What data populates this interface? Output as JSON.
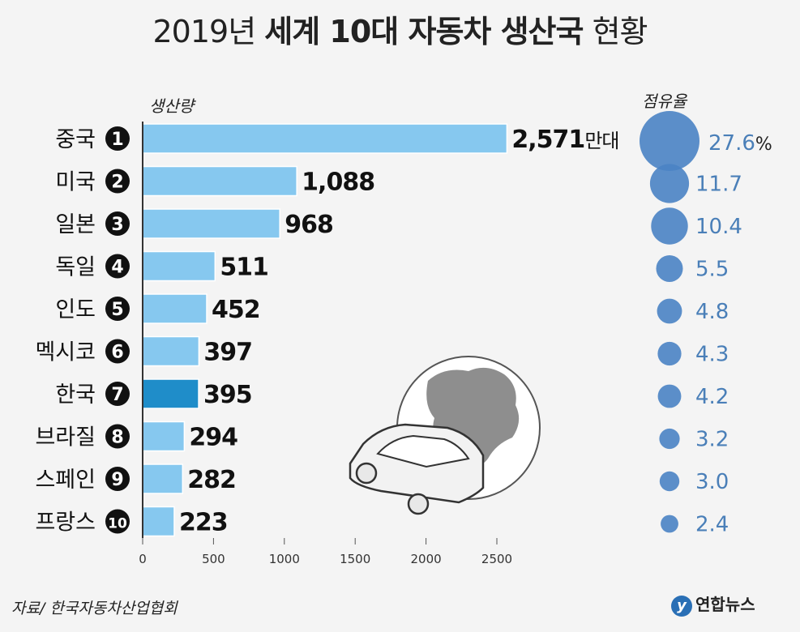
{
  "title": {
    "year": "2019년",
    "main": "세계 10대 자동차 생산국",
    "suffix": "현황"
  },
  "source": "자료/ 한국자동차산업협회",
  "logo_text": "연합뉴스",
  "colors": {
    "bar": "#86c8ef",
    "highlight": "#1f8dc9",
    "bubble": "#4a83c4",
    "share_text": "#4a7fb8"
  },
  "chart_data": {
    "type": "bar",
    "orientation": "horizontal",
    "ylabel": "생산량",
    "share_label": "점유율",
    "unit": "만대",
    "xlim": [
      0,
      2500
    ],
    "xticks": [
      0,
      500,
      1000,
      1500,
      2000,
      2500
    ],
    "categories": [
      "중국",
      "미국",
      "일본",
      "독일",
      "인도",
      "멕시코",
      "한국",
      "브라질",
      "스페인",
      "프랑스"
    ],
    "ranks": [
      "1",
      "2",
      "3",
      "4",
      "5",
      "6",
      "7",
      "8",
      "9",
      "10"
    ],
    "values": [
      2571,
      1088,
      968,
      511,
      452,
      397,
      395,
      294,
      282,
      223
    ],
    "value_labels": [
      "2,571",
      "1,088",
      "968",
      "511",
      "452",
      "397",
      "395",
      "294",
      "282",
      "223"
    ],
    "share": [
      27.6,
      11.7,
      10.4,
      5.5,
      4.8,
      4.3,
      4.2,
      3.2,
      3.0,
      2.4
    ],
    "share_labels": [
      "27.6",
      "11.7",
      "10.4",
      "5.5",
      "4.8",
      "4.3",
      "4.2",
      "3.2",
      "3.0",
      "2.4"
    ],
    "share_unit": "%",
    "highlight": "한국"
  }
}
